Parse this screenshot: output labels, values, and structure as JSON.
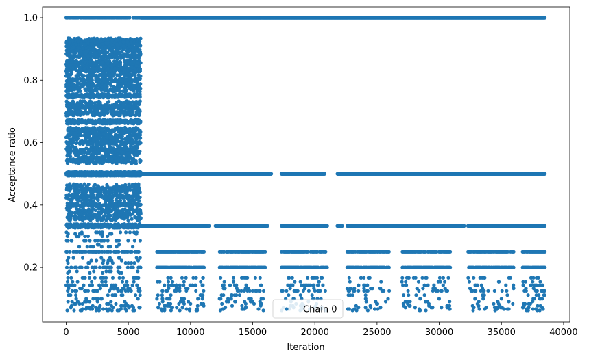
{
  "chart_data": {
    "type": "scatter",
    "xlabel": "Iteration",
    "ylabel": "Acceptance ratio",
    "xlim": [
      -1900,
      40500
    ],
    "ylim": [
      0.025,
      1.035
    ],
    "xticks": [
      0,
      5000,
      10000,
      15000,
      20000,
      25000,
      30000,
      35000,
      40000
    ],
    "xtick_labels": [
      "0",
      "5000",
      "10000",
      "15000",
      "20000",
      "25000",
      "30000",
      "35000",
      "40000"
    ],
    "yticks": [
      0.2,
      0.4,
      0.6,
      0.8,
      1.0
    ],
    "ytick_labels": [
      "0.2",
      "0.4",
      "0.6",
      "0.8",
      "1.0"
    ],
    "grid": false,
    "legend": {
      "placement": "lower center",
      "entries": [
        "Chain 0"
      ]
    },
    "series": [
      {
        "name": "Chain 0",
        "color": "#1f77b4",
        "marker": "circle",
        "n_points": 38500,
        "segments": [
          {
            "x_range": [
              0,
              6000
            ],
            "y": 1.0,
            "density": "sparse"
          },
          {
            "x_range": [
              6000,
              38500
            ],
            "y": 1.0,
            "density": "dense"
          },
          {
            "x_range": [
              0,
              6000
            ],
            "y_range": [
              0.86,
              0.94
            ],
            "density": "dense"
          },
          {
            "x_range": [
              0,
              6000
            ],
            "y_range": [
              0.5,
              0.86
            ],
            "density": "dense"
          },
          {
            "x_range": [
              0,
              6000
            ],
            "y_range": [
              0.33,
              0.5
            ],
            "density": "dense"
          },
          {
            "x_range": [
              0,
              6000
            ],
            "y_range": [
              0.06,
              0.33
            ],
            "density": "sparse"
          },
          {
            "x_range": [
              0,
              38500
            ],
            "y": 0.5,
            "density": "dense",
            "gaps": [
              [
                16500,
                17300
              ],
              [
                20800,
                21800
              ]
            ]
          },
          {
            "x_range": [
              6000,
              38500
            ],
            "y": 0.333,
            "density": "dense",
            "gaps": [
              [
                11500,
                12000
              ],
              [
                16200,
                17300
              ],
              [
                21000,
                21800
              ],
              [
                22200,
                22600
              ],
              [
                32000,
                32300
              ]
            ]
          },
          {
            "x_range": [
              7300,
              38500
            ],
            "y": 0.25,
            "density": "clustered"
          },
          {
            "x_range": [
              7300,
              38500
            ],
            "y": 0.2,
            "density": "clustered"
          },
          {
            "x_range": [
              7300,
              38500
            ],
            "y_range": [
              0.06,
              0.17
            ],
            "density": "clustered"
          }
        ],
        "cluster_ranges": [
          [
            7300,
            11100
          ],
          [
            12300,
            16000
          ],
          [
            17300,
            21000
          ],
          [
            22600,
            26000
          ],
          [
            27000,
            30900
          ],
          [
            32300,
            36000
          ],
          [
            36700,
            38500
          ]
        ]
      }
    ]
  }
}
